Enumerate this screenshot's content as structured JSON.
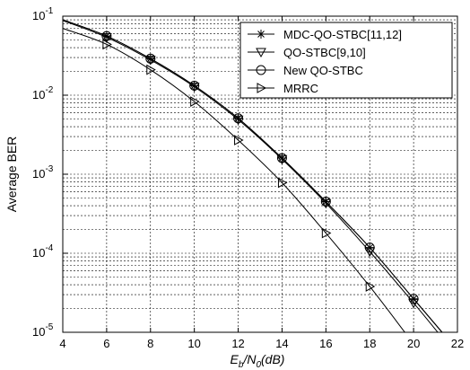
{
  "chart_data": {
    "type": "line",
    "title": "",
    "ylabel": "Average BER",
    "xlabel": {
      "e": "E",
      "b": "b",
      "slash": "/N",
      "zero": "0",
      "unit": "(dB)"
    },
    "xlim": [
      4,
      22
    ],
    "ylim": [
      1e-05,
      0.1
    ],
    "yscale": "log",
    "grid": true,
    "x_ticks": [
      "4",
      "6",
      "8",
      "10",
      "12",
      "14",
      "16",
      "18",
      "20",
      "22"
    ],
    "y_ticks": [
      {
        "base": "10",
        "exp": "-5"
      },
      {
        "base": "10",
        "exp": "-4"
      },
      {
        "base": "10",
        "exp": "-3"
      },
      {
        "base": "10",
        "exp": "-2"
      },
      {
        "base": "10",
        "exp": "-1"
      }
    ],
    "legend_position": "top-right",
    "series": [
      {
        "name": "MDC-QO-STBC[11,12]",
        "marker": "star",
        "x": [
          4,
          6,
          8,
          10,
          12,
          14,
          16,
          18,
          20,
          21.3
        ],
        "y": [
          0.09,
          0.056,
          0.029,
          0.0132,
          0.0051,
          0.0016,
          0.00045,
          0.000118,
          2.65e-05,
          1e-05
        ]
      },
      {
        "name": "QO-STBC[9,10]",
        "marker": "triangle-down",
        "x": [
          4,
          6,
          8,
          10,
          12,
          14,
          16,
          18,
          20,
          21.1
        ],
        "y": [
          0.088,
          0.054,
          0.028,
          0.0128,
          0.0049,
          0.00155,
          0.00043,
          0.000105,
          2.35e-05,
          1e-05
        ]
      },
      {
        "name": "New QO-STBC",
        "marker": "circle",
        "x": [
          4,
          6,
          8,
          10,
          12,
          14,
          16,
          18,
          20,
          21.3
        ],
        "y": [
          0.09,
          0.056,
          0.029,
          0.0132,
          0.0051,
          0.0016,
          0.00045,
          0.000118,
          2.65e-05,
          1e-05
        ]
      },
      {
        "name": "MRRC",
        "marker": "triangle-right",
        "x": [
          4,
          6,
          8,
          10,
          12,
          14,
          16,
          18,
          19.6
        ],
        "y": [
          0.07,
          0.044,
          0.021,
          0.0083,
          0.0027,
          0.00078,
          0.00018,
          3.8e-05,
          1e-05
        ]
      }
    ]
  }
}
